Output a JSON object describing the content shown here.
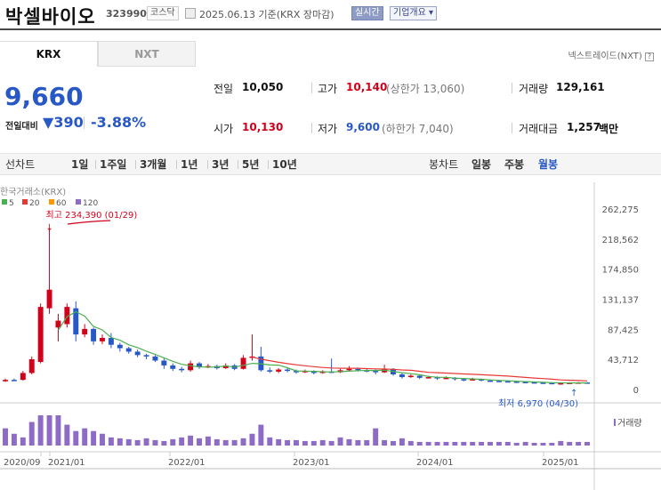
{
  "stock": {
    "name": "박셀바이오",
    "code": "323990",
    "market_tag": "코스닥",
    "date_text": "2025.06.13 기준(KRX 장마감)",
    "realtime_label": "실시간",
    "company_label": "기업개요"
  },
  "tabs": [
    {
      "label": "KRX",
      "active": true
    },
    {
      "label": "NXT",
      "active": false
    }
  ],
  "nxt_link": "넥스트레이드(NXT)",
  "price": {
    "current": "9,660",
    "change_label": "전일대비",
    "change_value": "390",
    "change_pct": "-3.88%",
    "direction": "down"
  },
  "stats": {
    "prev_close_label": "전일",
    "prev_close": "10,050",
    "open_label": "시가",
    "open": "10,130",
    "high_label": "고가",
    "high": "10,140",
    "upper_limit": "(상한가 13,060)",
    "low_label": "저가",
    "low": "9,600",
    "lower_limit": "(하한가 7,040)",
    "volume_label": "거래량",
    "volume": "129,161",
    "amount_label": "거래대금",
    "amount": "1,257",
    "amount_unit": "백만"
  },
  "periods": {
    "left": [
      "선차트",
      "1일",
      "1주일",
      "3개월",
      "1년",
      "3년",
      "5년",
      "10년"
    ],
    "right": [
      "봉차트",
      "일봉",
      "주봉",
      "월봉"
    ],
    "selected": "월봉"
  },
  "colors": {
    "up": "#d0021b",
    "down": "#2858c6",
    "ma5": "#4caf50",
    "ma20": "#e53935",
    "ma60": "#ff9800",
    "ma120": "#8e6cc6",
    "volume": "#8e6cc6"
  },
  "chart_labels": {
    "source": "한국거래소(KRX)",
    "legend": [
      {
        "label": "5",
        "color": "#4caf50"
      },
      {
        "label": "20",
        "color": "#e53935"
      },
      {
        "label": "60",
        "color": "#ff9800"
      },
      {
        "label": "120",
        "color": "#8e6cc6"
      }
    ],
    "max_annotation": "최고 234,390 (01/29)",
    "min_annotation": "최저 6,970 (04/30)",
    "volume_label": "거래량"
  },
  "chart_data": {
    "type": "candlestick",
    "interval": "monthly",
    "y_axis_ticks": [
      "262,275",
      "218,562",
      "174,850",
      "131,137",
      "87,425",
      "43,712",
      "0"
    ],
    "x_axis_ticks": [
      "2020/09",
      "2021/01",
      "2022/01",
      "2023/01",
      "2024/01",
      "2025/01"
    ],
    "ylim": [
      0,
      262275
    ],
    "max_value": 234390,
    "min_value": 6970,
    "candles": [
      {
        "o": 12000,
        "c": 14000,
        "h": 16000,
        "l": 11000
      },
      {
        "o": 14000,
        "c": 13500,
        "h": 16000,
        "l": 12500
      },
      {
        "o": 14000,
        "c": 24000,
        "h": 27000,
        "l": 13000
      },
      {
        "o": 24000,
        "c": 44000,
        "h": 48000,
        "l": 22000
      },
      {
        "o": 40000,
        "c": 120000,
        "h": 125000,
        "l": 38000
      },
      {
        "o": 118000,
        "c": 145000,
        "h": 234390,
        "l": 110000
      },
      {
        "o": 90000,
        "c": 100000,
        "h": 110000,
        "l": 70000
      },
      {
        "o": 95000,
        "c": 120000,
        "h": 125000,
        "l": 90000
      },
      {
        "o": 118000,
        "c": 80000,
        "h": 128000,
        "l": 70000
      },
      {
        "o": 80000,
        "c": 88000,
        "h": 95000,
        "l": 76000
      },
      {
        "o": 88000,
        "c": 70000,
        "h": 90000,
        "l": 65000
      },
      {
        "o": 70000,
        "c": 75000,
        "h": 80000,
        "l": 66000
      },
      {
        "o": 75000,
        "c": 65000,
        "h": 82000,
        "l": 60000
      },
      {
        "o": 65000,
        "c": 60000,
        "h": 68000,
        "l": 55000
      },
      {
        "o": 60000,
        "c": 55000,
        "h": 62000,
        "l": 52000
      },
      {
        "o": 55000,
        "c": 50000,
        "h": 58000,
        "l": 47000
      },
      {
        "o": 50000,
        "c": 48000,
        "h": 52000,
        "l": 44000
      },
      {
        "o": 48000,
        "c": 42000,
        "h": 50000,
        "l": 40000
      },
      {
        "o": 42000,
        "c": 35000,
        "h": 45000,
        "l": 30000
      },
      {
        "o": 35000,
        "c": 30000,
        "h": 38000,
        "l": 27000
      },
      {
        "o": 30000,
        "c": 28000,
        "h": 33000,
        "l": 25000
      },
      {
        "o": 28000,
        "c": 38000,
        "h": 42000,
        "l": 26000
      },
      {
        "o": 38000,
        "c": 33000,
        "h": 40000,
        "l": 30000
      },
      {
        "o": 33000,
        "c": 34000,
        "h": 37000,
        "l": 31000
      },
      {
        "o": 34000,
        "c": 31000,
        "h": 36000,
        "l": 29000
      },
      {
        "o": 31000,
        "c": 35000,
        "h": 38000,
        "l": 30000
      },
      {
        "o": 35000,
        "c": 30000,
        "h": 37000,
        "l": 28000
      },
      {
        "o": 30000,
        "c": 46000,
        "h": 50000,
        "l": 29000
      },
      {
        "o": 46000,
        "c": 48000,
        "h": 80000,
        "l": 42000
      },
      {
        "o": 48000,
        "c": 28000,
        "h": 62000,
        "l": 26000
      },
      {
        "o": 28000,
        "c": 26000,
        "h": 32000,
        "l": 24000
      },
      {
        "o": 26000,
        "c": 29000,
        "h": 31000,
        "l": 24000
      },
      {
        "o": 29000,
        "c": 27000,
        "h": 31000,
        "l": 25000
      },
      {
        "o": 27000,
        "c": 25000,
        "h": 29000,
        "l": 23000
      },
      {
        "o": 25000,
        "c": 27000,
        "h": 29000,
        "l": 24000
      },
      {
        "o": 27000,
        "c": 24000,
        "h": 28000,
        "l": 22000
      },
      {
        "o": 24000,
        "c": 26000,
        "h": 28000,
        "l": 23000
      },
      {
        "o": 26000,
        "c": 25000,
        "h": 45000,
        "l": 24000
      },
      {
        "o": 25000,
        "c": 28000,
        "h": 30000,
        "l": 24000
      },
      {
        "o": 28000,
        "c": 30000,
        "h": 34000,
        "l": 26000
      },
      {
        "o": 30000,
        "c": 28000,
        "h": 32000,
        "l": 26000
      },
      {
        "o": 28000,
        "c": 27000,
        "h": 30000,
        "l": 25000
      },
      {
        "o": 27000,
        "c": 25000,
        "h": 29000,
        "l": 22000
      },
      {
        "o": 25000,
        "c": 30000,
        "h": 36000,
        "l": 24000
      },
      {
        "o": 30000,
        "c": 22000,
        "h": 31000,
        "l": 20000
      },
      {
        "o": 22000,
        "c": 18000,
        "h": 24000,
        "l": 16000
      },
      {
        "o": 18000,
        "c": 20000,
        "h": 22000,
        "l": 17000
      },
      {
        "o": 20000,
        "c": 17000,
        "h": 21000,
        "l": 15000
      },
      {
        "o": 17000,
        "c": 18000,
        "h": 20000,
        "l": 16000
      },
      {
        "o": 18000,
        "c": 16000,
        "h": 19000,
        "l": 14000
      },
      {
        "o": 16000,
        "c": 17000,
        "h": 19000,
        "l": 15000
      },
      {
        "o": 17000,
        "c": 15000,
        "h": 18000,
        "l": 13000
      },
      {
        "o": 15000,
        "c": 14000,
        "h": 16000,
        "l": 12000
      },
      {
        "o": 14000,
        "c": 15000,
        "h": 17000,
        "l": 13000
      },
      {
        "o": 15000,
        "c": 13000,
        "h": 16000,
        "l": 12000
      },
      {
        "o": 13000,
        "c": 12500,
        "h": 14500,
        "l": 11500
      },
      {
        "o": 12500,
        "c": 12000,
        "h": 13500,
        "l": 11000
      },
      {
        "o": 12000,
        "c": 11500,
        "h": 13000,
        "l": 10500
      },
      {
        "o": 11500,
        "c": 11000,
        "h": 12500,
        "l": 10000
      },
      {
        "o": 11000,
        "c": 10500,
        "h": 12000,
        "l": 9500
      },
      {
        "o": 10500,
        "c": 10000,
        "h": 11500,
        "l": 9000
      },
      {
        "o": 10000,
        "c": 9500,
        "h": 11000,
        "l": 8500
      },
      {
        "o": 9500,
        "c": 9000,
        "h": 10500,
        "l": 8000
      },
      {
        "o": 9000,
        "c": 9200,
        "h": 10000,
        "l": 6970
      },
      {
        "o": 9200,
        "c": 9800,
        "h": 10500,
        "l": 8800
      },
      {
        "o": 9800,
        "c": 10200,
        "h": 11000,
        "l": 9500
      },
      {
        "o": 10200,
        "c": 9660,
        "h": 10800,
        "l": 9400
      }
    ],
    "ma20": [
      null,
      null,
      null,
      null,
      null,
      null,
      null,
      null,
      null,
      null,
      null,
      null,
      null,
      null,
      null,
      null,
      null,
      null,
      null,
      null,
      null,
      null,
      null,
      null,
      null,
      null,
      null,
      null,
      null,
      null,
      null,
      null,
      null,
      null,
      null,
      null,
      null,
      null,
      null,
      null,
      null,
      null,
      null,
      null,
      null,
      null,
      null,
      null,
      null,
      null,
      null,
      null,
      null,
      null,
      null,
      null,
      null,
      null,
      null,
      null,
      null,
      null,
      null,
      null,
      null,
      null,
      null
    ]
  }
}
